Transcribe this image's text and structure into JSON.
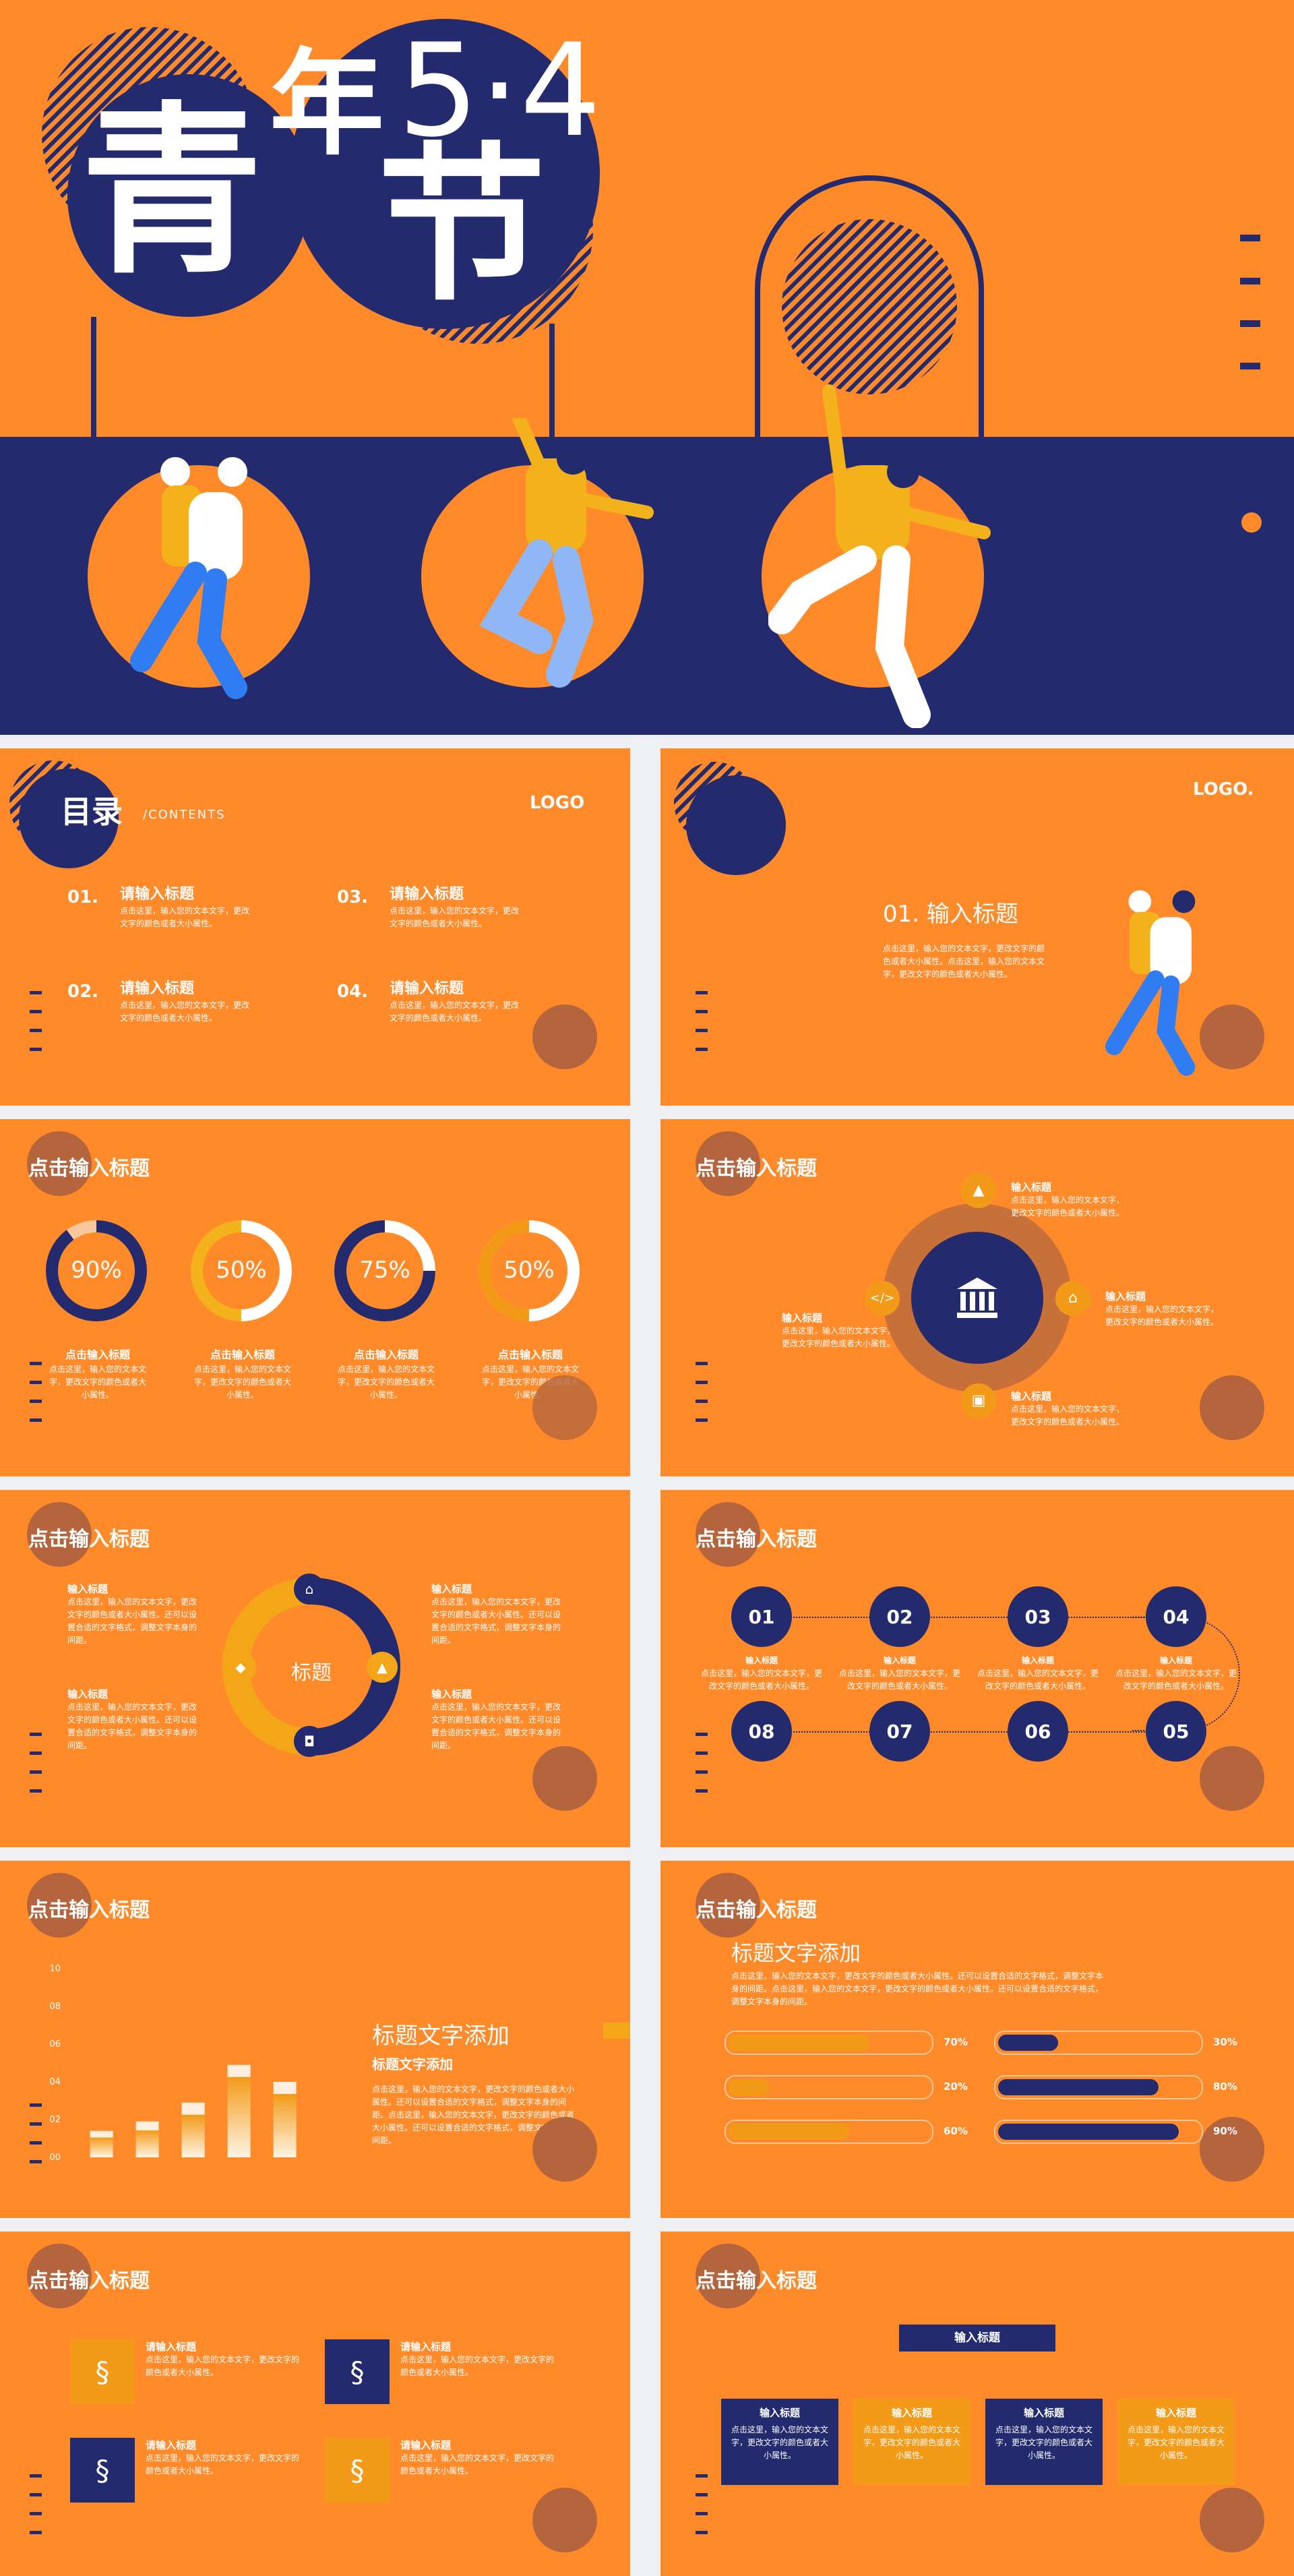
{
  "cover": {
    "title_char1": "青",
    "title_char2": "年",
    "title_char3": "节",
    "title_date": "5·4"
  },
  "toc": {
    "title": "目录",
    "subtitle": "/CONTENTS",
    "logo": "LOGO",
    "items": [
      {
        "num": "01.",
        "label": "请输入标题",
        "desc": "点击这里，输入您的文本文字，更改文字的颜色或者大小属性。"
      },
      {
        "num": "03.",
        "label": "请输入标题",
        "desc": "点击这里，输入您的文本文字，更改文字的颜色或者大小属性。"
      },
      {
        "num": "02.",
        "label": "请输入标题",
        "desc": "点击这里，输入您的文本文字，更改文字的颜色或者大小属性。"
      },
      {
        "num": "04.",
        "label": "请输入标题",
        "desc": "点击这里，输入您的文本文字，更改文字的颜色或者大小属性。"
      }
    ]
  },
  "section": {
    "logo": "LOGO.",
    "heading": "01. 输入标题",
    "desc": "点击这里，输入您的文本文字，更改文字的颜色或者大小属性。点击这里，输入您的文本文字，更改文字的颜色或者大小属性。"
  },
  "slide_title": "点击输入标题",
  "rings": [
    {
      "value": "90%",
      "label": "点击输入标题",
      "desc": "点击这里，输入您的文本文字，更改文字的颜色或者大小属性。"
    },
    {
      "value": "50%",
      "label": "点击输入标题",
      "desc": "点击这里，输入您的文本文字，更改文字的颜色或者大小属性。"
    },
    {
      "value": "75%",
      "label": "点击输入标题",
      "desc": "点击这里，输入您的文本文字，更改文字的颜色或者大小属性。"
    },
    {
      "value": "50%",
      "label": "点击输入标题",
      "desc": "点击这里，输入您的文本文字，更改文字的颜色或者大小属性。"
    }
  ],
  "hub": {
    "items": [
      {
        "label": "输入标题",
        "desc": "点击这里，输入您的文本文字，更改文字的颜色或者大小属性。"
      },
      {
        "label": "输入标题",
        "desc": "点击这里，输入您的文本文字，更改文字的颜色或者大小属性。"
      },
      {
        "label": "输入标题",
        "desc": "点击这里，输入您的文本文字，更改文字的颜色或者大小属性。"
      },
      {
        "label": "输入标题",
        "desc": "点击这里，输入您的文本文字，更改文字的颜色或者大小属性。"
      }
    ]
  },
  "cycle": {
    "center": "标题",
    "items": [
      {
        "label": "输入标题",
        "desc": "点击这里，输入您的文本文字，更改文字的颜色或者大小属性。还可以设置合适的文字格式，调整文字本身的间距。"
      },
      {
        "label": "输入标题",
        "desc": "点击这里，输入您的文本文字，更改文字的颜色或者大小属性。还可以设置合适的文字格式，调整文字本身的间距。"
      },
      {
        "label": "输入标题",
        "desc": "点击这里，输入您的文本文字，更改文字的颜色或者大小属性。还可以设置合适的文字格式，调整文字本身的间距。"
      },
      {
        "label": "输入标题",
        "desc": "点击这里，输入您的文本文字，更改文字的颜色或者大小属性。还可以设置合适的文字格式，调整文字本身的间距。"
      }
    ]
  },
  "timeline": {
    "top": [
      "01",
      "02",
      "03",
      "04"
    ],
    "bottom": [
      "08",
      "07",
      "06",
      "05"
    ],
    "label": "输入标题",
    "desc": "点击这里，输入您的文本文字，更改文字的颜色或者大小属性。"
  },
  "chart_data": {
    "type": "bar",
    "yticks": [
      "00",
      "02",
      "04",
      "06",
      "08",
      "10"
    ],
    "values": [
      1.4,
      1.9,
      2.9,
      4.9,
      4.0
    ],
    "ylim": [
      0,
      10
    ],
    "title": "标题文字添加",
    "subtitle": "标题文字添加",
    "desc": "点击这里，输入您的文本文字，更改文字的颜色或者大小属性。还可以设置合适的文字格式，调整文字本身的间距。点击这里，输入您的文本文字，更改文字的颜色或者大小属性。还可以设置合适的文字格式，调整文字本身的间距。"
  },
  "progress": {
    "title": "标题文字添加",
    "desc": "点击这里，输入您的文本文字，更改文字的颜色或者大小属性。还可以设置合适的文字格式，调整文字本身的间距。点击这里，输入您的文本文字，更改文字的颜色或者大小属性。还可以设置合适的文字格式，调整文字本身的间距。",
    "left": [
      {
        "value": "70%",
        "fraction": 0.7
      },
      {
        "value": "20%",
        "fraction": 0.2
      },
      {
        "value": "60%",
        "fraction": 0.6
      }
    ],
    "right": [
      {
        "value": "30%",
        "fraction": 0.3
      },
      {
        "value": "80%",
        "fraction": 0.8
      },
      {
        "value": "90%",
        "fraction": 0.9
      }
    ]
  },
  "features": {
    "items": [
      {
        "label": "请输入标题",
        "desc": "点击这里，输入您的文本文字，更改文字的颜色或者大小属性。"
      },
      {
        "label": "请输入标题",
        "desc": "点击这里，输入您的文本文字，更改文字的颜色或者大小属性。"
      },
      {
        "label": "请输入标题",
        "desc": "点击这里，输入您的文本文字，更改文字的颜色或者大小属性。"
      },
      {
        "label": "请输入标题",
        "desc": "点击这里，输入您的文本文字，更改文字的颜色或者大小属性。"
      }
    ]
  },
  "cards": {
    "header": "输入标题",
    "items": [
      {
        "label": "输入标题",
        "desc": "点击这里，输入您的文本文字，更改文字的颜色或者大小属性。"
      },
      {
        "label": "输入标题",
        "desc": "点击这里，输入您的文本文字，更改文字的颜色或者大小属性。"
      },
      {
        "label": "输入标题",
        "desc": "点击这里，输入您的文本文字，更改文字的颜色或者大小属性。"
      },
      {
        "label": "输入标题",
        "desc": "点击这里，输入您的文本文字，更改文字的颜色或者大小属性。"
      }
    ]
  },
  "colors": {
    "orange": "#ff8a2a",
    "navy": "#232a6d",
    "yellow": "#f3b21b",
    "brown": "#b4653d"
  }
}
